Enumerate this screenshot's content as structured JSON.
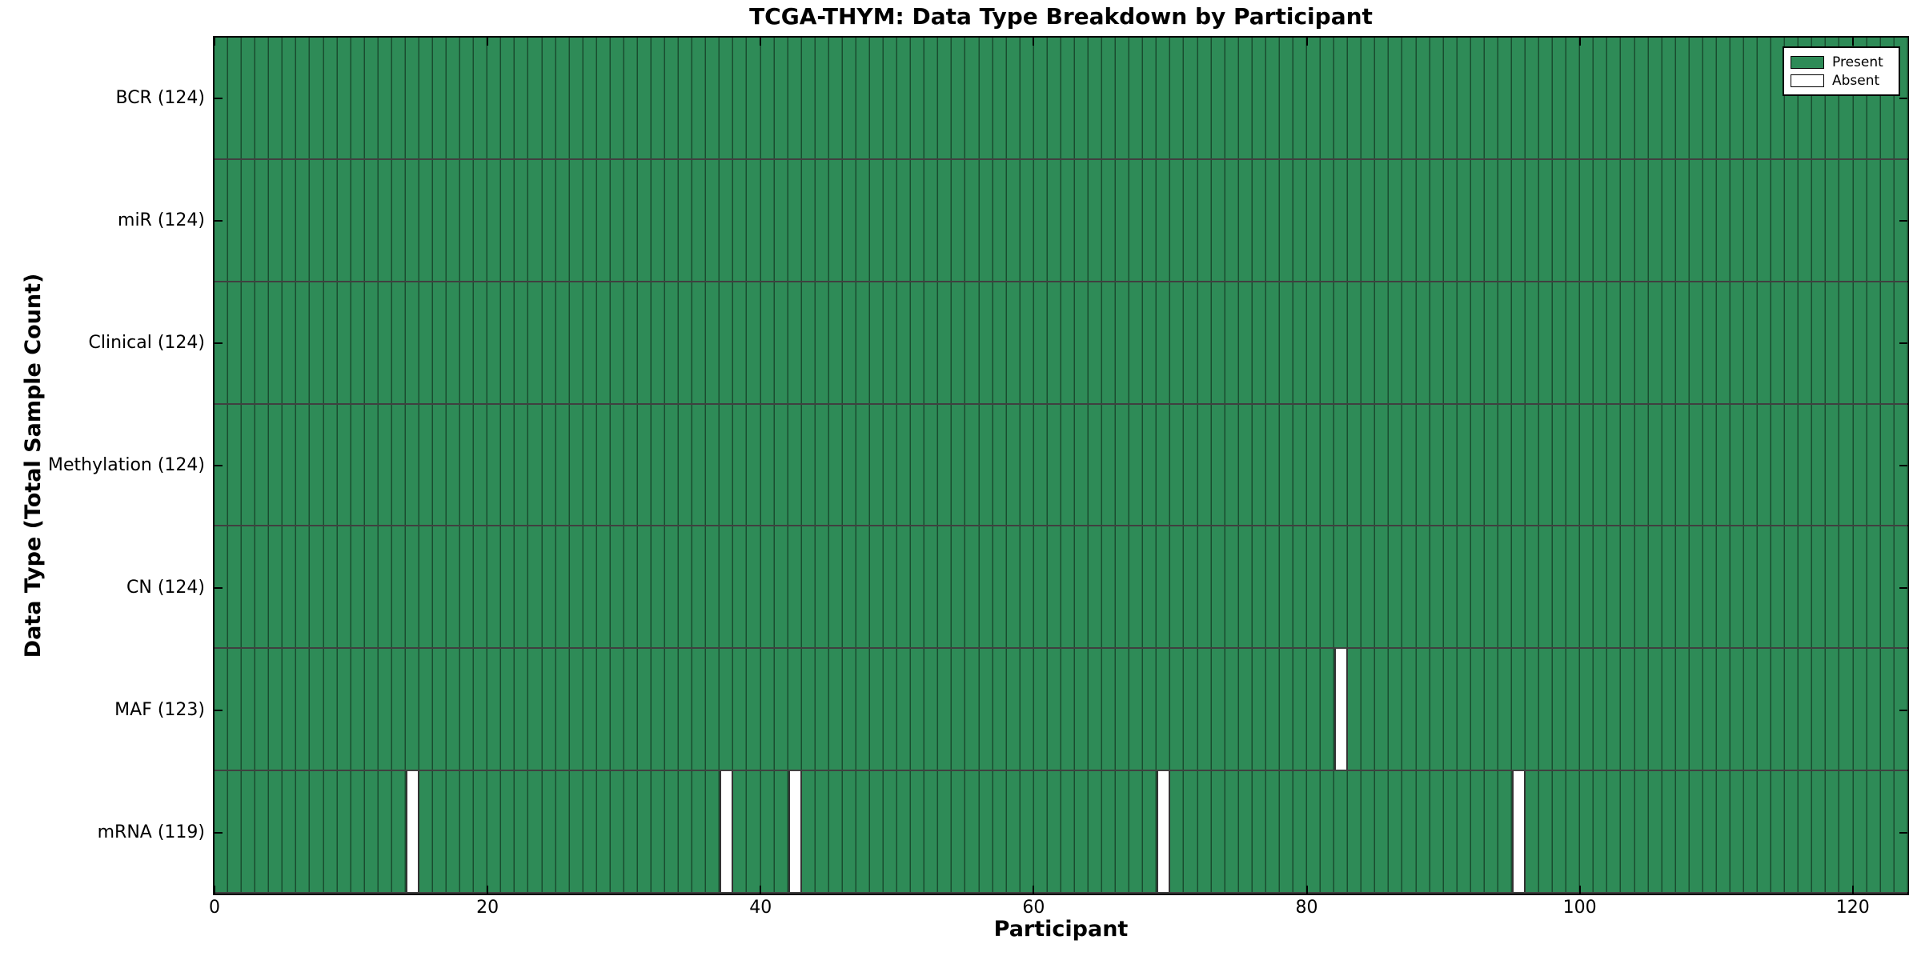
{
  "figure": {
    "title": "TCGA-THYM: Data Type Breakdown by Participant",
    "x_axis_label": "Participant",
    "y_axis_label": "Data Type (Total Sample Count)"
  },
  "legend": {
    "present_label": "Present",
    "absent_label": "Absent"
  },
  "colors": {
    "present_fill": "#2e8b57",
    "absent_fill": "#ffffff",
    "cell_edge": "rgba(0,0,0,0.45)",
    "row_divider": "rgba(0,0,0,0.75)",
    "axis": "#000000"
  },
  "chart_data": {
    "type": "heatmap",
    "title": "TCGA-THYM: Data Type Breakdown by Participant",
    "xlabel": "Participant",
    "ylabel": "Data Type (Total Sample Count)",
    "x": {
      "range": [
        0,
        124
      ],
      "ticks": [
        0,
        20,
        40,
        60,
        80,
        100,
        120
      ],
      "n_participants": 124
    },
    "legend_position": "upper right",
    "legend": [
      {
        "label": "Present",
        "color": "#2e8b57"
      },
      {
        "label": "Absent",
        "color": "#ffffff"
      }
    ],
    "rows": [
      {
        "label": "BCR (124)",
        "data_type": "BCR",
        "total_sample_count": 124,
        "absent_participant_indices": []
      },
      {
        "label": "miR (124)",
        "data_type": "miR",
        "total_sample_count": 124,
        "absent_participant_indices": []
      },
      {
        "label": "Clinical (124)",
        "data_type": "Clinical",
        "total_sample_count": 124,
        "absent_participant_indices": []
      },
      {
        "label": "Methylation (124)",
        "data_type": "Methylation",
        "total_sample_count": 124,
        "absent_participant_indices": []
      },
      {
        "label": "CN (124)",
        "data_type": "CN",
        "total_sample_count": 124,
        "absent_participant_indices": []
      },
      {
        "label": "MAF (123)",
        "data_type": "MAF",
        "total_sample_count": 123,
        "absent_participant_indices": [
          82
        ]
      },
      {
        "label": "mRNA (119)",
        "data_type": "mRNA",
        "total_sample_count": 119,
        "absent_participant_indices": [
          14,
          37,
          42,
          69,
          95
        ]
      }
    ]
  }
}
